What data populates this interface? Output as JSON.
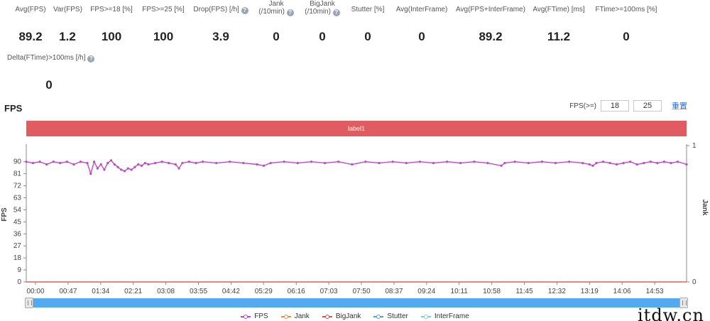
{
  "metrics": [
    {
      "label": "Avg(FPS)",
      "value": "89.2",
      "help": false
    },
    {
      "label": "Var(FPS)",
      "value": "1.2",
      "help": false
    },
    {
      "label": "FPS>=18 [%]",
      "value": "100",
      "help": false
    },
    {
      "label": "FPS>=25 [%]",
      "value": "100",
      "help": false
    },
    {
      "label": "Drop(FPS) [/h]",
      "value": "3.9",
      "help": true
    },
    {
      "label": "Jank",
      "label2": "(/10min)",
      "value": "0",
      "help": true
    },
    {
      "label": "BigJank",
      "label2": "(/10min)",
      "value": "0",
      "help": true
    },
    {
      "label": "Stutter [%]",
      "value": "0",
      "help": false
    },
    {
      "label": "Avg(InterFrame)",
      "value": "0",
      "help": false
    },
    {
      "label": "Avg(FPS+InterFrame)",
      "value": "89.2",
      "help": false
    },
    {
      "label": "Avg(FTime) [ms]",
      "value": "11.2",
      "help": false
    },
    {
      "label": "FTime>=100ms [%]",
      "value": "0",
      "help": false
    },
    {
      "label": "Delta(FTime)>100ms [/h]",
      "value": "0",
      "help": true
    }
  ],
  "help_glyph": "?",
  "section_title": "FPS",
  "fps_threshold": {
    "label": "FPS(>=)",
    "value1": "18",
    "value2": "25",
    "reset_label": "重置"
  },
  "label_bar": "label1",
  "chart_data": {
    "type": "line",
    "ylabel": "FPS",
    "ylabel_right": "Jank",
    "yticks": [
      0,
      9,
      18,
      27,
      36,
      45,
      54,
      63,
      72,
      81,
      90
    ],
    "ylim": [
      0,
      101
    ],
    "right_ticks": [
      "0",
      "1"
    ],
    "xticks": [
      "00:00",
      "00:47",
      "01:34",
      "02:21",
      "03:08",
      "03:55",
      "04:42",
      "05:29",
      "06:16",
      "07:03",
      "07:50",
      "08:37",
      "09:24",
      "10:11",
      "10:58",
      "11:45",
      "12:32",
      "13:19",
      "14:06",
      "14:53"
    ],
    "xlim_seconds": [
      0,
      973
    ],
    "series": [
      {
        "name": "FPS",
        "color": "#b84cc3",
        "points": [
          [
            0,
            90
          ],
          [
            10,
            89
          ],
          [
            20,
            90
          ],
          [
            30,
            88
          ],
          [
            40,
            90
          ],
          [
            50,
            89
          ],
          [
            60,
            90
          ],
          [
            70,
            88
          ],
          [
            80,
            90
          ],
          [
            90,
            89
          ],
          [
            95,
            81
          ],
          [
            100,
            90
          ],
          [
            105,
            85
          ],
          [
            110,
            88
          ],
          [
            115,
            84
          ],
          [
            120,
            89
          ],
          [
            125,
            91
          ],
          [
            130,
            88
          ],
          [
            135,
            86
          ],
          [
            140,
            84
          ],
          [
            145,
            83
          ],
          [
            150,
            85
          ],
          [
            155,
            84
          ],
          [
            160,
            86
          ],
          [
            165,
            88
          ],
          [
            170,
            87
          ],
          [
            175,
            89
          ],
          [
            180,
            88
          ],
          [
            190,
            89
          ],
          [
            200,
            90
          ],
          [
            210,
            89
          ],
          [
            220,
            88
          ],
          [
            225,
            85
          ],
          [
            230,
            89
          ],
          [
            240,
            90
          ],
          [
            250,
            89
          ],
          [
            260,
            90
          ],
          [
            280,
            89
          ],
          [
            300,
            90
          ],
          [
            320,
            89
          ],
          [
            340,
            88
          ],
          [
            350,
            87
          ],
          [
            360,
            89
          ],
          [
            380,
            90
          ],
          [
            400,
            89
          ],
          [
            420,
            90
          ],
          [
            440,
            89
          ],
          [
            460,
            90
          ],
          [
            480,
            88
          ],
          [
            500,
            90
          ],
          [
            520,
            89
          ],
          [
            540,
            90
          ],
          [
            560,
            89
          ],
          [
            580,
            90
          ],
          [
            600,
            89
          ],
          [
            620,
            90
          ],
          [
            640,
            89
          ],
          [
            660,
            90
          ],
          [
            680,
            89
          ],
          [
            700,
            87
          ],
          [
            705,
            89
          ],
          [
            720,
            90
          ],
          [
            740,
            89
          ],
          [
            760,
            90
          ],
          [
            780,
            89
          ],
          [
            800,
            90
          ],
          [
            820,
            89
          ],
          [
            830,
            88
          ],
          [
            835,
            87
          ],
          [
            840,
            89
          ],
          [
            850,
            90
          ],
          [
            860,
            89
          ],
          [
            870,
            88
          ],
          [
            880,
            89
          ],
          [
            890,
            90
          ],
          [
            900,
            88
          ],
          [
            910,
            89
          ],
          [
            920,
            90
          ],
          [
            930,
            89
          ],
          [
            940,
            90
          ],
          [
            950,
            89
          ],
          [
            960,
            90
          ],
          [
            973,
            88
          ]
        ]
      },
      {
        "name": "Jank",
        "color": "#f08a4c",
        "points": [
          [
            0,
            0
          ],
          [
            973,
            0
          ]
        ]
      },
      {
        "name": "BigJank",
        "color": "#d9534f",
        "points": [
          [
            0,
            0
          ],
          [
            973,
            0
          ]
        ]
      },
      {
        "name": "Stutter",
        "color": "#5b9bd5",
        "points": []
      },
      {
        "name": "InterFrame",
        "color": "#7fd1d8",
        "points": []
      }
    ]
  },
  "watermark": "itdw.cn"
}
